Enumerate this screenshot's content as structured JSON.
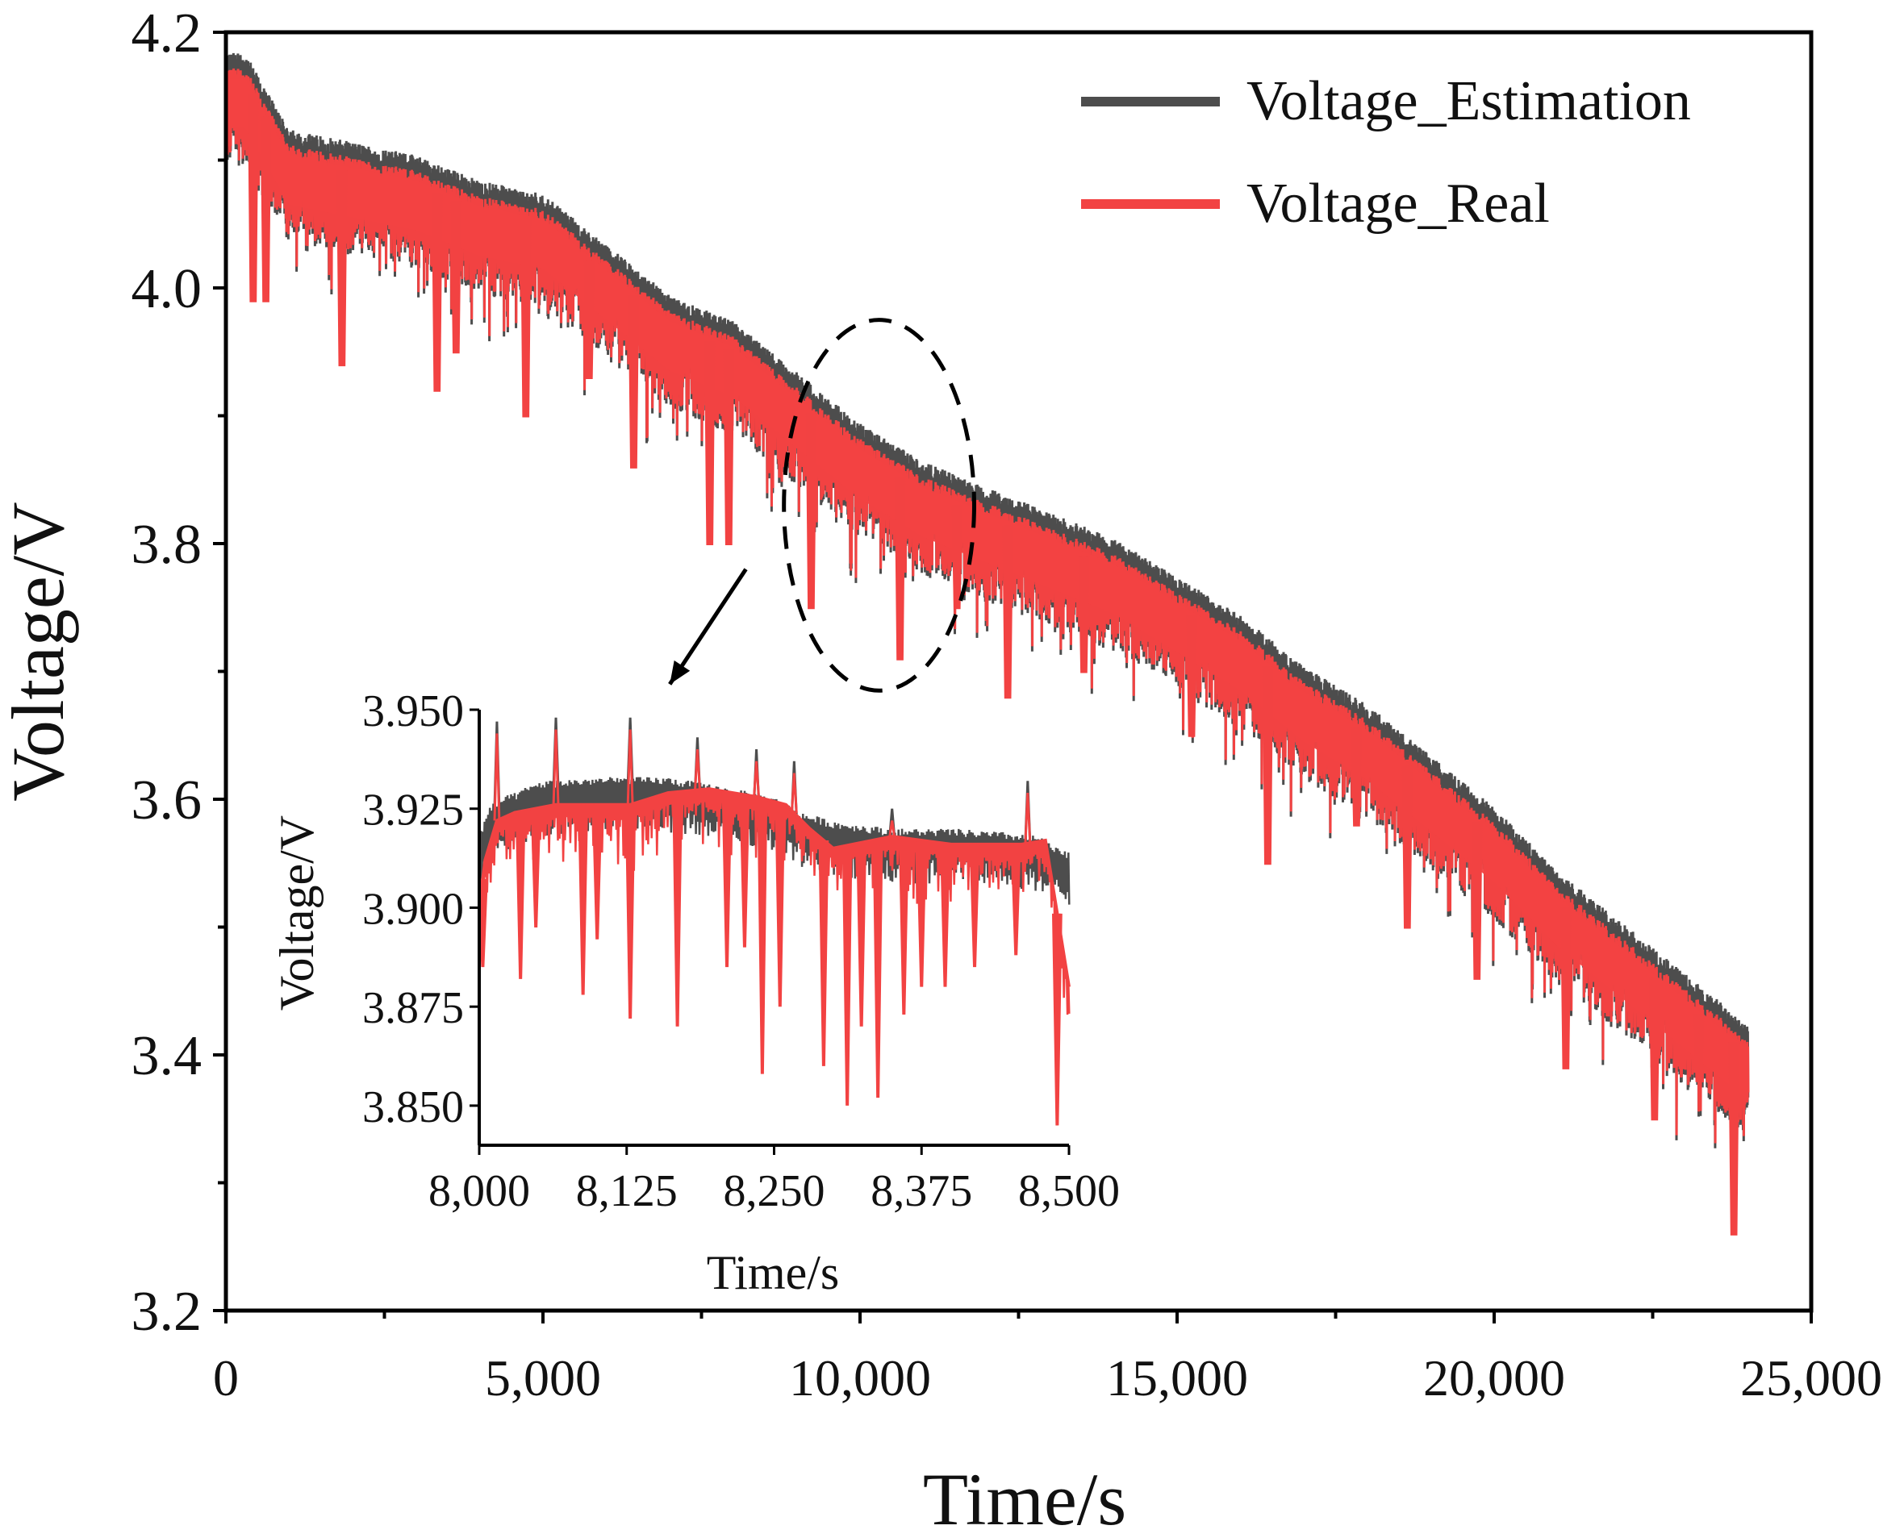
{
  "colors": {
    "estimation": "#4d4d4d",
    "real": "#f24242",
    "axis": "#000000",
    "background": "#ffffff"
  },
  "chart_data": [
    {
      "id": "main",
      "type": "line",
      "title": "",
      "xlabel": "Time/s",
      "ylabel": "Voltage/V",
      "xlim": [
        0,
        25000
      ],
      "ylim": [
        3.2,
        4.2
      ],
      "grid": false,
      "legend_position": "top-right",
      "xticks": [
        0,
        5000,
        10000,
        15000,
        20000,
        25000
      ],
      "xtick_labels": [
        "0",
        "5,000",
        "10,000",
        "15,000",
        "20,000",
        "25,000"
      ],
      "yticks": [
        3.2,
        3.4,
        3.6,
        3.8,
        4.0,
        4.2
      ],
      "ytick_labels": [
        "3.2",
        "3.4",
        "3.6",
        "3.8",
        "4.0",
        "4.2"
      ],
      "series": [
        {
          "name": "Voltage_Estimation",
          "color": "estimation",
          "baseline": {
            "x": [
              0,
              300,
              1000,
              2000,
              3000,
              4000,
              5000,
              6000,
              7000,
              8000,
              9000,
              10000,
              11000,
              12000,
              13000,
              14000,
              15000,
              16000,
              17000,
              18000,
              19000,
              20000,
              21000,
              22000,
              23000,
              24000
            ],
            "y": [
              4.16,
              4.16,
              4.1,
              4.09,
              4.08,
              4.06,
              4.05,
              4.01,
              3.97,
              3.95,
              3.91,
              3.87,
              3.84,
              3.82,
              3.8,
              3.78,
              3.75,
              3.72,
              3.68,
              3.65,
              3.61,
              3.57,
              3.52,
              3.48,
              3.44,
              3.4
            ]
          }
        },
        {
          "name": "Voltage_Real",
          "color": "real",
          "baseline": {
            "x": [
              0,
              300,
              1000,
              2000,
              3000,
              4000,
              5000,
              6000,
              7000,
              8000,
              9000,
              10000,
              11000,
              12000,
              13000,
              14000,
              15000,
              16000,
              17000,
              18000,
              19000,
              20000,
              21000,
              22000,
              23000,
              24000
            ],
            "y": [
              4.16,
              4.16,
              4.1,
              4.09,
              4.08,
              4.06,
              4.05,
              4.01,
              3.97,
              3.95,
              3.91,
              3.87,
              3.84,
              3.82,
              3.8,
              3.78,
              3.75,
              3.72,
              3.68,
              3.65,
              3.61,
              3.57,
              3.52,
              3.48,
              3.44,
              3.4
            ]
          },
          "deep_drops": [
            [
              400,
              3.99
            ],
            [
              600,
              3.99
            ],
            [
              1800,
              3.94
            ],
            [
              3300,
              3.92
            ],
            [
              3600,
              3.95
            ],
            [
              4700,
              3.9
            ],
            [
              5700,
              3.93
            ],
            [
              6400,
              3.86
            ],
            [
              7600,
              3.8
            ],
            [
              7900,
              3.8
            ],
            [
              9200,
              3.75
            ],
            [
              10600,
              3.71
            ],
            [
              11500,
              3.75
            ],
            [
              12300,
              3.68
            ],
            [
              13500,
              3.7
            ],
            [
              15200,
              3.65
            ],
            [
              16400,
              3.55
            ],
            [
              17800,
              3.58
            ],
            [
              18600,
              3.5
            ],
            [
              19700,
              3.46
            ],
            [
              21100,
              3.39
            ],
            [
              22500,
              3.35
            ],
            [
              23200,
              3.38
            ],
            [
              23750,
              3.26
            ]
          ]
        }
      ],
      "annotations": [
        {
          "type": "ellipse",
          "dashed": true,
          "center": [
            10300,
            3.83
          ],
          "rx_data": 1500,
          "ry_data": 0.145
        },
        {
          "type": "arrow",
          "from": [
            8200,
            3.78
          ],
          "to": [
            7000,
            3.69
          ]
        }
      ]
    },
    {
      "id": "inset",
      "type": "line",
      "title": "",
      "xlabel": "Time/s",
      "ylabel": "Voltage/V",
      "xlim": [
        8000,
        8500
      ],
      "ylim": [
        3.84,
        3.95
      ],
      "grid": false,
      "xticks": [
        8000,
        8125,
        8250,
        8375,
        8500
      ],
      "xtick_labels": [
        "8,000",
        "8,125",
        "8,250",
        "8,375",
        "8,500"
      ],
      "yticks": [
        3.85,
        3.875,
        3.9,
        3.925,
        3.95
      ],
      "ytick_labels": [
        "3.850",
        "3.875",
        "3.900",
        "3.925",
        "3.950"
      ],
      "series": [
        {
          "name": "Voltage_Estimation",
          "color": "estimation",
          "points": [
            [
              8000,
              3.917
            ],
            [
              8010,
              3.924
            ],
            [
              8020,
              3.926
            ],
            [
              8030,
              3.927
            ],
            [
              8050,
              3.93
            ],
            [
              8100,
              3.931
            ],
            [
              8160,
              3.931
            ],
            [
              8200,
              3.929
            ],
            [
              8250,
              3.926
            ],
            [
              8275,
              3.922
            ],
            [
              8300,
              3.92
            ],
            [
              8350,
              3.918
            ],
            [
              8400,
              3.918
            ],
            [
              8450,
              3.917
            ],
            [
              8475,
              3.916
            ],
            [
              8490,
              3.913
            ],
            [
              8500,
              3.912
            ]
          ],
          "spikes": [
            [
              8015,
              3.947
            ],
            [
              8065,
              3.948
            ],
            [
              8128,
              3.948
            ],
            [
              8185,
              3.943
            ],
            [
              8235,
              3.94
            ],
            [
              8267,
              3.937
            ],
            [
              8350,
              3.925
            ],
            [
              8465,
              3.932
            ]
          ]
        },
        {
          "name": "Voltage_Real",
          "color": "real",
          "points": [
            [
              8000,
              3.9
            ],
            [
              8005,
              3.912
            ],
            [
              8015,
              3.922
            ],
            [
              8030,
              3.924
            ],
            [
              8065,
              3.926
            ],
            [
              8128,
              3.926
            ],
            [
              8160,
              3.929
            ],
            [
              8195,
              3.93
            ],
            [
              8235,
              3.928
            ],
            [
              8260,
              3.926
            ],
            [
              8280,
              3.92
            ],
            [
              8300,
              3.915
            ],
            [
              8350,
              3.918
            ],
            [
              8400,
              3.916
            ],
            [
              8460,
              3.916
            ],
            [
              8480,
              3.917
            ],
            [
              8500,
              3.88
            ]
          ],
          "drops": [
            [
              8003,
              3.885
            ],
            [
              8035,
              3.882
            ],
            [
              8048,
              3.895
            ],
            [
              8088,
              3.878
            ],
            [
              8100,
              3.892
            ],
            [
              8128,
              3.872
            ],
            [
              8168,
              3.87
            ],
            [
              8210,
              3.885
            ],
            [
              8225,
              3.89
            ],
            [
              8240,
              3.858
            ],
            [
              8255,
              3.875
            ],
            [
              8292,
              3.86
            ],
            [
              8312,
              3.85
            ],
            [
              8324,
              3.87
            ],
            [
              8338,
              3.852
            ],
            [
              8360,
              3.873
            ],
            [
              8375,
              3.88
            ],
            [
              8395,
              3.88
            ],
            [
              8420,
              3.885
            ],
            [
              8455,
              3.888
            ],
            [
              8490,
              3.845
            ]
          ]
        }
      ]
    }
  ]
}
